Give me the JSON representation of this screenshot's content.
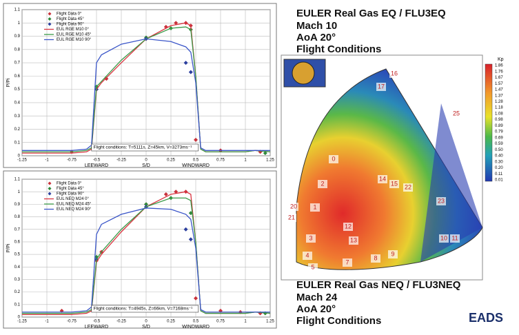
{
  "chart_data": [
    {
      "type": "line",
      "ylabel": "P/Pi",
      "xlabel": "S/D",
      "leeward_label": "LEEWARD",
      "windward_label": "WINDWARD",
      "annotation": "Flight conditions: T=5111s, Z=45km, V=3273ms⁻¹",
      "xlim": [
        -1.25,
        1.25
      ],
      "ylim": [
        0,
        1.1
      ],
      "xticks": [
        -1.25,
        -1,
        -0.75,
        -0.5,
        -0.25,
        0,
        0.25,
        0.5,
        0.75,
        1,
        1.25
      ],
      "yticks": [
        0,
        0.1,
        0.2,
        0.3,
        0.4,
        0.5,
        0.6,
        0.7,
        0.8,
        0.9,
        1,
        1.1
      ],
      "grid": true,
      "legend": "upper-left",
      "series": [
        {
          "name": "Flight Data 0°",
          "type": "scatter",
          "color": "#c8323c",
          "x": [
            -0.75,
            -0.5,
            -0.4,
            0,
            0.2,
            0.3,
            0.4,
            0.45,
            0.5,
            0.75,
            1.15
          ],
          "values": [
            0.03,
            0.5,
            0.58,
            0.88,
            0.97,
            1.0,
            1.0,
            0.98,
            0.12,
            0.04,
            0.03
          ]
        },
        {
          "name": "Flight Data 45°",
          "type": "scatter",
          "color": "#2f8a3c",
          "x": [
            -0.5,
            0,
            0.25,
            0.45,
            1.2
          ],
          "values": [
            0.52,
            0.89,
            0.96,
            0.95,
            0.02
          ]
        },
        {
          "name": "Flight Data 90°",
          "type": "scatter",
          "color": "#2c3f9e",
          "x": [
            -0.5,
            0,
            0.4,
            0.45
          ],
          "values": [
            0.5,
            0.88,
            0.7,
            0.63
          ]
        },
        {
          "name": "EUL RGE M10 0°",
          "type": "line",
          "color": "#d9333f",
          "x": [
            -1.25,
            -1,
            -0.75,
            -0.6,
            -0.55,
            -0.5,
            -0.45,
            -0.25,
            0,
            0.25,
            0.4,
            0.45,
            0.5,
            0.55,
            0.6,
            0.75,
            1,
            1.1,
            1.25
          ],
          "values": [
            0.02,
            0.02,
            0.02,
            0.03,
            0.05,
            0.5,
            0.55,
            0.7,
            0.88,
            0.98,
            1.0,
            0.98,
            0.6,
            0.05,
            0.03,
            0.03,
            0.03,
            0.04,
            0.03
          ]
        },
        {
          "name": "EUL RGE M10 45°",
          "type": "line",
          "color": "#3a9a48",
          "x": [
            -1.25,
            -1,
            -0.75,
            -0.6,
            -0.55,
            -0.5,
            -0.45,
            -0.25,
            0,
            0.25,
            0.4,
            0.45,
            0.5,
            0.55,
            0.6,
            0.75,
            1,
            1.1,
            1.25
          ],
          "values": [
            0.03,
            0.03,
            0.03,
            0.04,
            0.06,
            0.52,
            0.56,
            0.72,
            0.88,
            0.96,
            0.97,
            0.95,
            0.6,
            0.05,
            0.03,
            0.03,
            0.03,
            0.04,
            0.03
          ]
        },
        {
          "name": "EUL RGE M10 90°",
          "type": "line",
          "color": "#3a55c8",
          "x": [
            -1.25,
            -1,
            -0.75,
            -0.6,
            -0.55,
            -0.5,
            -0.45,
            -0.25,
            0,
            0.25,
            0.4,
            0.45,
            0.5,
            0.55,
            0.6,
            0.75,
            1,
            1.1,
            1.25
          ],
          "values": [
            0.04,
            0.04,
            0.04,
            0.05,
            0.08,
            0.7,
            0.76,
            0.84,
            0.88,
            0.86,
            0.82,
            0.78,
            0.55,
            0.06,
            0.04,
            0.04,
            0.04,
            0.04,
            0.04
          ]
        }
      ]
    },
    {
      "type": "line",
      "ylabel": "P/Pi",
      "xlabel": "S/D",
      "leeward_label": "LEEWARD",
      "windward_label": "WINDWARD",
      "annotation": "Flight conditions: T=4945s, Z=66km, V=7168ms⁻¹",
      "xlim": [
        -1.25,
        1.25
      ],
      "ylim": [
        0,
        1.1
      ],
      "xticks": [
        -1.25,
        -1,
        -0.75,
        -0.5,
        -0.25,
        0,
        0.25,
        0.5,
        0.75,
        1,
        1.25
      ],
      "yticks": [
        0,
        0.1,
        0.2,
        0.3,
        0.4,
        0.5,
        0.6,
        0.7,
        0.8,
        0.9,
        1,
        1.1
      ],
      "grid": true,
      "legend": "upper-left",
      "series": [
        {
          "name": "Flight Data 0°",
          "type": "scatter",
          "color": "#c8323c",
          "x": [
            -0.85,
            -0.5,
            -0.45,
            0,
            0.2,
            0.3,
            0.4,
            0.5,
            0.75,
            0.95,
            1.15
          ],
          "values": [
            0.05,
            0.45,
            0.52,
            0.9,
            0.98,
            1.0,
            1.0,
            0.15,
            0.05,
            0.04,
            0.03
          ]
        },
        {
          "name": "Flight Data 45°",
          "type": "scatter",
          "color": "#2f8a3c",
          "x": [
            -0.5,
            0,
            0.25,
            0.45,
            1.2
          ],
          "values": [
            0.48,
            0.9,
            0.95,
            0.83,
            0.03
          ]
        },
        {
          "name": "Flight Data 90°",
          "type": "scatter",
          "color": "#2c3f9e",
          "x": [
            -0.5,
            0,
            0.4,
            0.45
          ],
          "values": [
            0.46,
            0.88,
            0.7,
            0.62
          ]
        },
        {
          "name": "EUL NEQ M24 0°",
          "type": "line",
          "color": "#d9333f",
          "x": [
            -1.25,
            -1,
            -0.75,
            -0.6,
            -0.55,
            -0.5,
            -0.45,
            -0.25,
            0,
            0.25,
            0.4,
            0.45,
            0.5,
            0.55,
            0.6,
            0.75,
            1,
            1.1,
            1.25
          ],
          "values": [
            0.02,
            0.02,
            0.02,
            0.03,
            0.05,
            0.44,
            0.5,
            0.68,
            0.88,
            0.98,
            1.0,
            0.98,
            0.6,
            0.05,
            0.03,
            0.03,
            0.03,
            0.04,
            0.03
          ]
        },
        {
          "name": "EUL NEQ M24 45°",
          "type": "line",
          "color": "#3a9a48",
          "x": [
            -1.25,
            -1,
            -0.75,
            -0.6,
            -0.55,
            -0.5,
            -0.45,
            -0.25,
            0,
            0.25,
            0.4,
            0.45,
            0.5,
            0.55,
            0.6,
            0.75,
            1,
            1.1,
            1.25
          ],
          "values": [
            0.03,
            0.03,
            0.03,
            0.04,
            0.06,
            0.46,
            0.52,
            0.7,
            0.88,
            0.95,
            0.95,
            0.93,
            0.6,
            0.05,
            0.03,
            0.03,
            0.03,
            0.04,
            0.03
          ]
        },
        {
          "name": "EUL NEQ M24 90°",
          "type": "line",
          "color": "#3a55c8",
          "x": [
            -1.25,
            -1,
            -0.75,
            -0.6,
            -0.55,
            -0.5,
            -0.45,
            -0.25,
            0,
            0.25,
            0.4,
            0.45,
            0.5,
            0.55,
            0.6,
            0.75,
            1,
            1.1,
            1.25
          ],
          "values": [
            0.04,
            0.04,
            0.04,
            0.05,
            0.08,
            0.66,
            0.74,
            0.82,
            0.87,
            0.86,
            0.82,
            0.78,
            0.55,
            0.06,
            0.04,
            0.04,
            0.04,
            0.04,
            0.04
          ]
        }
      ]
    }
  ],
  "top_panel": {
    "title": "EULER Real Gas EQ / FLU3EQ",
    "lines": [
      "Mach 10",
      "AoA 20°",
      "Flight Conditions"
    ]
  },
  "bottom_panel": {
    "title": "EULER Real Gas NEQ / FLU3NEQ",
    "lines": [
      "Mach 24",
      "AoA 20°",
      "Flight Conditions"
    ]
  },
  "colorbar": {
    "title": "Kp",
    "labels": [
      "1.86",
      "1.76",
      "1.67",
      "1.57",
      "1.47",
      "1.37",
      "1.28",
      "1.18",
      "1.08",
      "0.98",
      "0.89",
      "0.79",
      "0.69",
      "0.59",
      "0.50",
      "0.40",
      "0.30",
      "0.20",
      "0.11",
      "0.01"
    ]
  },
  "capsule_labels": [
    "16",
    "17",
    "25",
    "0",
    "2",
    "14",
    "15",
    "22",
    "23",
    "20",
    "21",
    "1",
    "12",
    "13",
    "3",
    "4",
    "5",
    "7",
    "8",
    "9",
    "10",
    "11"
  ],
  "logo": "EADS"
}
